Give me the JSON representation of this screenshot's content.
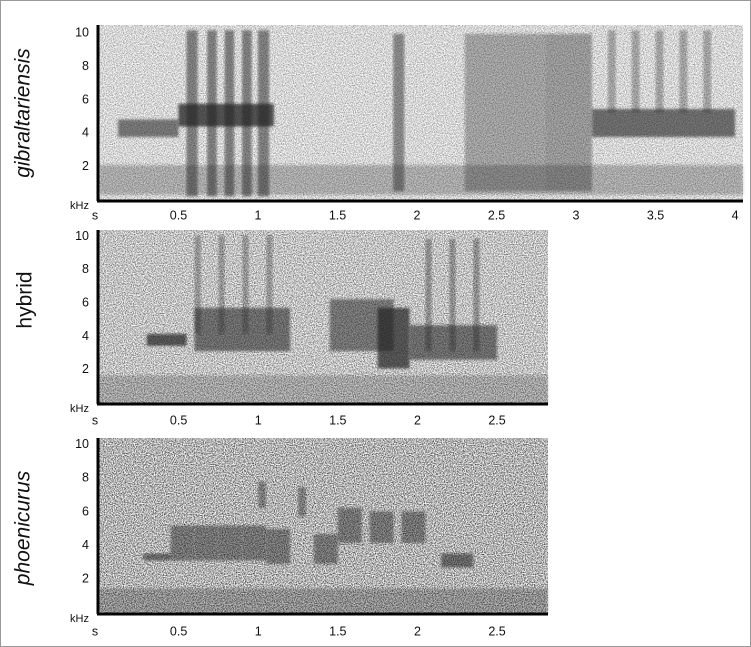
{
  "chart_data": [
    {
      "type": "spectrogram",
      "label": "gibraltariensis",
      "xlim": [
        0,
        4.05
      ],
      "xticks": [
        {
          "value": 0,
          "label": "s"
        },
        0.5,
        1.0,
        1.5,
        2.0,
        2.5,
        3.0,
        3.5,
        4.0
      ],
      "ylim": [
        0,
        10.5
      ],
      "yticks": [
        {
          "value": 0,
          "label": "kHz"
        },
        2,
        4,
        6,
        8,
        10
      ]
    },
    {
      "type": "spectrogram",
      "label": "hybrid",
      "xlim": [
        0,
        2.82
      ],
      "xticks": [
        {
          "value": 0,
          "label": "s"
        },
        0.5,
        1.0,
        1.5,
        2.0,
        2.5
      ],
      "ylim": [
        0,
        10.4
      ],
      "yticks": [
        {
          "value": 0,
          "label": "kHz"
        },
        2,
        4,
        6,
        8,
        10
      ]
    },
    {
      "type": "spectrogram",
      "label": "phoenicurus",
      "xlim": [
        0,
        2.82
      ],
      "xticks": [
        {
          "value": 0,
          "label": "s"
        },
        0.5,
        1.0,
        1.5,
        2.0,
        2.5
      ],
      "ylim": [
        0,
        10.4
      ],
      "yticks": [
        {
          "value": 0,
          "label": "kHz"
        },
        2,
        4,
        6,
        8,
        10
      ]
    }
  ]
}
